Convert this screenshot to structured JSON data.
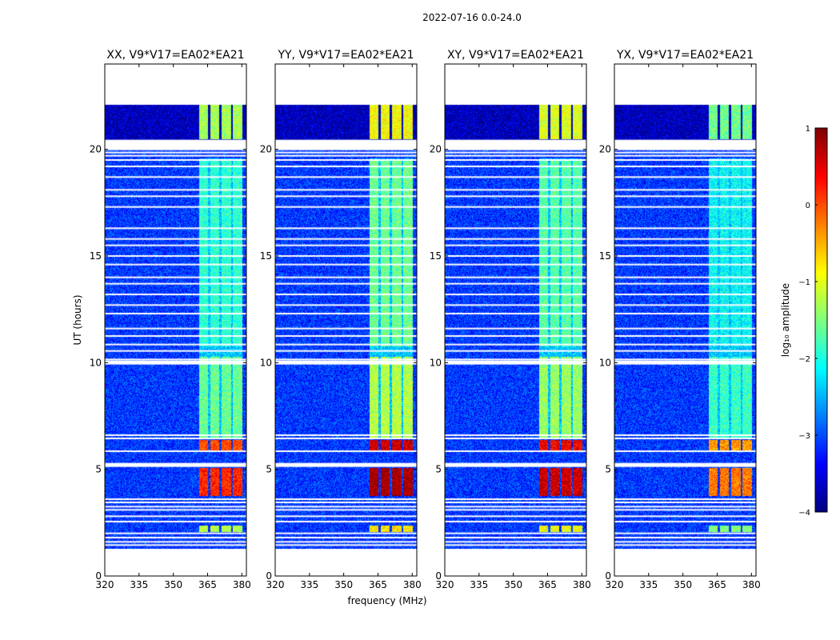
{
  "figure": {
    "suptitle": "2022-07-16 0.0-24.0",
    "ylabel": "UT (hours)",
    "xlabel": "frequency (MHz)"
  },
  "chart_data": {
    "type": "heatmap",
    "x_range": [
      320,
      382
    ],
    "y_range": [
      0,
      24
    ],
    "x_ticks": [
      320,
      335,
      350,
      365,
      380
    ],
    "y_ticks": [
      0,
      5,
      10,
      15,
      20
    ],
    "x_tick_labels": [
      "320",
      "335",
      "350",
      "365",
      "380"
    ],
    "y_tick_labels": [
      "0",
      "5",
      "10",
      "15",
      "20"
    ],
    "panels": [
      {
        "title": "XX, V9*V17=EA02*EA21",
        "rfi_gain": 1.0
      },
      {
        "title": "YY, V9*V17=EA02*EA21",
        "rfi_gain": 1.15
      },
      {
        "title": "XY, V9*V17=EA02*EA21",
        "rfi_gain": 1.1
      },
      {
        "title": "YX, V9*V17=EA02*EA21",
        "rfi_gain": 0.9
      }
    ],
    "data_extent_hours": [
      1.3,
      22.1
    ],
    "background_log_amplitude": -3.1,
    "rfi_band_mhz": [
      361,
      380
    ],
    "rfi_subbands_mhz": [
      [
        361,
        365
      ],
      [
        366,
        370
      ],
      [
        371,
        375
      ],
      [
        376,
        380
      ]
    ],
    "rfi_episodes": [
      {
        "ut_start": 3.8,
        "ut_end": 5.1,
        "log_amplitude": 0.2
      },
      {
        "ut_start": 5.9,
        "ut_end": 6.4,
        "log_amplitude": 0.0
      },
      {
        "ut_start": 6.5,
        "ut_end": 10.3,
        "log_amplitude": -1.6
      },
      {
        "ut_start": 10.8,
        "ut_end": 19.5,
        "log_amplitude": -1.9
      },
      {
        "ut_start": 20.5,
        "ut_end": 22.1,
        "log_amplitude": -1.3
      },
      {
        "ut_start": 2.1,
        "ut_end": 2.4,
        "log_amplitude": -1.2
      }
    ],
    "flagged_ut_hours": [
      1.45,
      1.6,
      1.8,
      2.0,
      2.55,
      2.8,
      3.1,
      3.25,
      3.45,
      3.6,
      5.15,
      5.25,
      5.85,
      6.45,
      6.6,
      9.95,
      10.05,
      10.15,
      10.55,
      10.85,
      11.25,
      11.6,
      12.3,
      12.7,
      13.2,
      13.7,
      14.0,
      14.6,
      15.0,
      15.5,
      15.8,
      16.3,
      17.3,
      17.8,
      18.1,
      18.7,
      19.2,
      19.5,
      19.7,
      19.85,
      20.0
    ],
    "colorbar": {
      "label": "log₁₀ amplitude",
      "range": [
        -4,
        1
      ],
      "ticks": [
        1,
        0,
        -1,
        -2,
        -3,
        -4
      ],
      "tick_labels": [
        "1",
        "0",
        "−1",
        "−2",
        "−3",
        "−4"
      ],
      "colormap": "jet"
    }
  }
}
